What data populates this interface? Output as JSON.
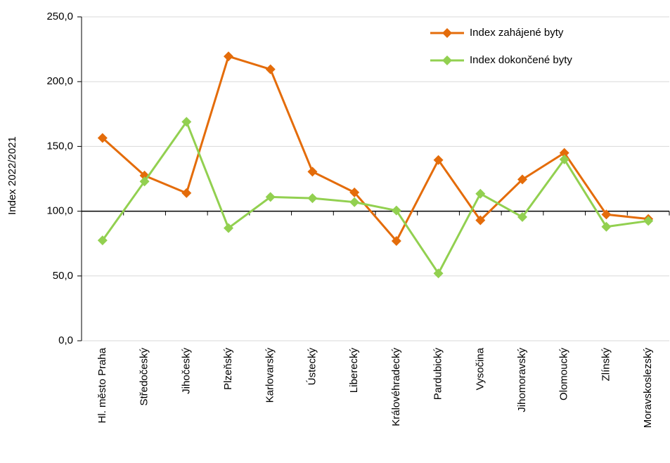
{
  "chart_data": {
    "type": "line",
    "ylabel": "Index 2022/2021",
    "categories": [
      "Hl. město Praha",
      "Středočeský",
      "Jihočeský",
      "Plzeňský",
      "Karlovarský",
      "Ústecký",
      "Liberecký",
      "Královéhradecký",
      "Pardubický",
      "Vysočina",
      "Jihomoravský",
      "Olomoucký",
      "Zlínský",
      "Moravskoslezský"
    ],
    "series": [
      {
        "name": "Index zahájené byty",
        "color": "#e46c0a",
        "values": [
          156.5,
          127.5,
          114,
          219.5,
          209.5,
          130.5,
          114.5,
          77,
          139.5,
          93,
          124.5,
          145,
          97.5,
          94
        ]
      },
      {
        "name": "Index dokončené byty",
        "color": "#92d050",
        "values": [
          77.5,
          123,
          169,
          87,
          111,
          110,
          107,
          100.5,
          52,
          113.5,
          95.5,
          140,
          88,
          92.5
        ]
      }
    ],
    "ylim": [
      0,
      250
    ],
    "yticks": [
      {
        "value": 0,
        "label": "0,0"
      },
      {
        "value": 50,
        "label": "50,0"
      },
      {
        "value": 100,
        "label": "100,0"
      },
      {
        "value": 150,
        "label": "150,0"
      },
      {
        "value": 200,
        "label": "200,0"
      },
      {
        "value": 250,
        "label": "250,0"
      }
    ],
    "x_axis_crosses": 100,
    "grid": true,
    "legend": "upper right"
  }
}
